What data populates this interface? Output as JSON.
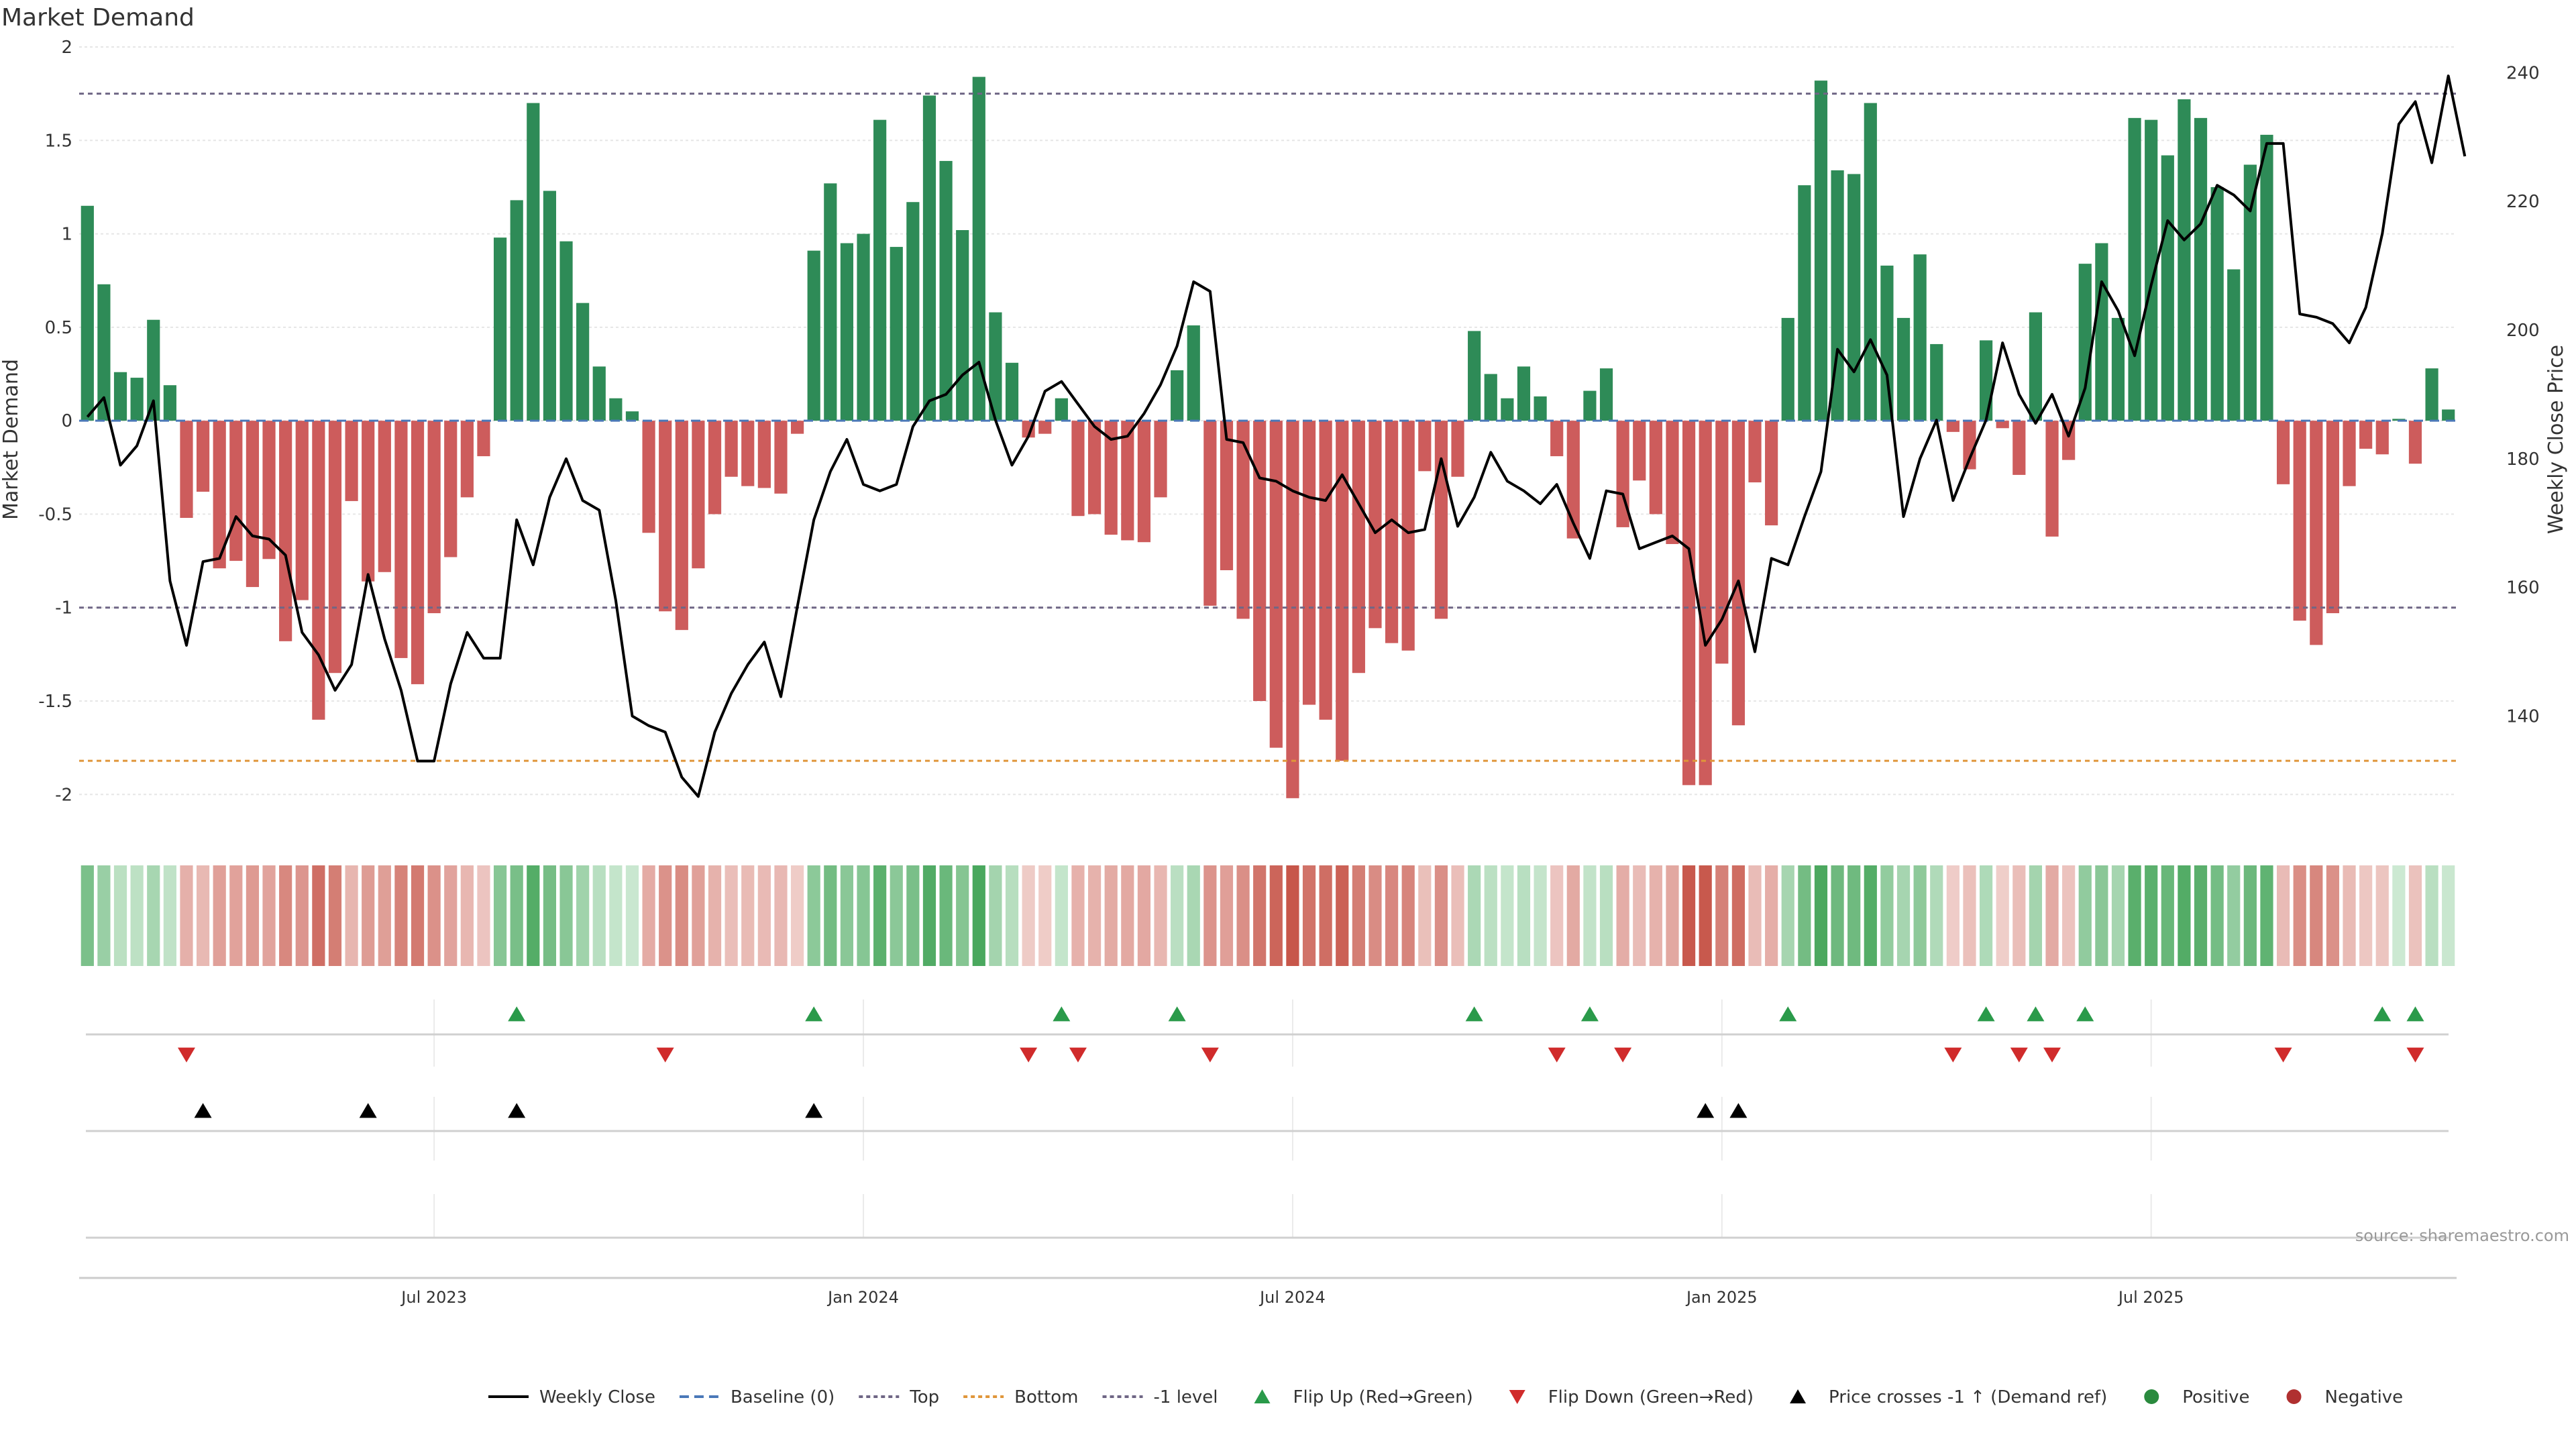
{
  "chart_data": {
    "type": "bar",
    "title": "Market Demand",
    "ylabel_left": "Market Demand",
    "ylabel_right": "Weekly Close Price",
    "xlabel": "",
    "ylim_left": [
      -2.2,
      2.0
    ],
    "ylim_right": [
      122,
      244
    ],
    "left_ticks": [
      "2",
      "1.5",
      "1",
      "0.5",
      "0",
      "-0.5",
      "-1",
      "-1.5",
      "-2"
    ],
    "right_ticks": [
      "240",
      "220",
      "200",
      "180",
      "160",
      "140"
    ],
    "x_tick_labels": [
      {
        "label": "Jul 2023",
        "week": 21
      },
      {
        "label": "Jan 2024",
        "week": 47
      },
      {
        "label": "Jul 2024",
        "week": 73
      },
      {
        "label": "Jan 2025",
        "week": 99
      },
      {
        "label": "Jul 2025",
        "week": 125
      }
    ],
    "levels": {
      "top": 1.75,
      "bottom": -1.82,
      "minus_one": -1
    },
    "series": [
      {
        "name": "Market Demand",
        "values": [
          1.15,
          0.73,
          0.26,
          0.23,
          0.54,
          0.19,
          -0.52,
          -0.38,
          -0.79,
          -0.75,
          -0.89,
          -0.74,
          -1.18,
          -0.96,
          -1.6,
          -1.35,
          -0.43,
          -0.86,
          -0.81,
          -1.27,
          -1.41,
          -1.03,
          -0.73,
          -0.41,
          -0.19,
          0.98,
          1.18,
          1.7,
          1.23,
          0.96,
          0.63,
          0.29,
          0.12,
          0.05,
          -0.6,
          -1.02,
          -1.12,
          -0.79,
          -0.5,
          -0.3,
          -0.35,
          -0.36,
          -0.39,
          -0.07,
          0.91,
          1.27,
          0.95,
          1.0,
          1.61,
          0.93,
          1.17,
          1.74,
          1.39,
          1.02,
          1.84,
          0.58,
          0.31,
          -0.09,
          -0.07,
          0.12,
          -0.51,
          -0.5,
          -0.61,
          -0.64,
          -0.65,
          -0.41,
          0.27,
          0.51,
          -0.99,
          -0.8,
          -1.06,
          -1.5,
          -1.75,
          -2.02,
          -1.52,
          -1.6,
          -1.82,
          -1.35,
          -1.11,
          -1.19,
          -1.23,
          -0.27,
          -1.06,
          -0.3,
          0.48,
          0.25,
          0.12,
          0.29,
          0.13,
          -0.19,
          -0.63,
          0.16,
          0.28,
          -0.57,
          -0.32,
          -0.5,
          -0.66,
          -1.95,
          -1.95,
          -1.3,
          -1.63,
          -0.33,
          -0.56,
          0.55,
          1.26,
          1.82,
          1.34,
          1.32,
          1.7,
          0.83,
          0.55,
          0.89,
          0.41,
          -0.06,
          -0.26,
          0.43,
          -0.04,
          -0.29,
          0.58,
          -0.62,
          -0.21,
          0.84,
          0.95,
          0.55,
          1.62,
          1.61,
          1.42,
          1.72,
          1.62,
          1.25,
          0.81,
          1.37,
          1.53,
          -0.34,
          -1.07,
          -1.2,
          -1.03,
          -0.35,
          -0.15,
          -0.18,
          0.01,
          -0.23,
          0.28,
          0.06
        ]
      },
      {
        "name": "Weekly Close",
        "values": [
          186.5,
          189.5,
          179,
          182,
          189,
          161,
          151,
          164,
          164.5,
          171,
          168,
          167.5,
          165,
          153,
          149.5,
          144,
          148,
          162,
          152,
          144,
          133,
          133,
          145,
          153,
          149,
          149,
          170.5,
          163.5,
          174,
          180,
          173.5,
          172,
          158,
          140,
          138.5,
          137.5,
          130.5,
          127.5,
          137.5,
          143.5,
          148,
          151.5,
          143,
          157,
          170.5,
          178,
          183,
          176,
          175,
          176,
          185,
          189,
          190,
          193,
          195,
          186,
          179,
          183.5,
          190.5,
          192,
          188.5,
          185,
          183,
          183.5,
          187,
          191.5,
          197.5,
          207.5,
          206,
          183,
          182.5,
          177,
          176.5,
          175,
          174,
          173.5,
          177.5,
          173,
          168.5,
          170.5,
          168.5,
          169,
          180,
          169.5,
          174,
          181,
          176.5,
          175,
          173,
          176,
          170,
          164.5,
          175,
          174.5,
          166,
          167,
          168,
          166,
          151,
          155,
          161,
          150,
          164.5,
          163.5,
          171,
          178,
          197,
          193.5,
          198.5,
          193,
          171,
          180,
          186,
          173.5,
          180,
          186,
          198,
          190,
          185.5,
          190,
          183.5,
          191,
          207.5,
          203,
          196,
          207,
          217,
          214,
          216.5,
          222.5,
          221,
          218.5,
          229,
          229,
          202.5,
          202,
          201,
          198,
          203.5,
          215,
          232,
          235.5,
          226,
          239.5,
          227
        ]
      }
    ],
    "heat_strip": {
      "name": "demand intensity"
    },
    "flip_up_weeks": [
      26,
      44,
      59,
      66,
      84,
      91,
      103,
      115,
      118,
      121,
      139,
      141
    ],
    "flip_down_weeks": [
      6,
      35,
      57,
      60,
      68,
      89,
      93,
      113,
      117,
      119,
      133,
      141
    ],
    "price_cross_weeks": [
      7,
      17,
      26,
      44,
      98,
      100
    ],
    "source": "source: sharemaestro.com",
    "legend": [
      {
        "label": "Weekly Close",
        "kind": "line",
        "color": "#000000"
      },
      {
        "label": "Baseline (0)",
        "kind": "dash",
        "color": "#4a78b8"
      },
      {
        "label": "Top",
        "kind": "dot",
        "color": "#6f6685"
      },
      {
        "label": "Bottom",
        "kind": "dot",
        "color": "#e0963a"
      },
      {
        "label": "-1 level",
        "kind": "dot",
        "color": "#6f6685"
      },
      {
        "label": "Flip Up (Red→Green)",
        "kind": "tri-up",
        "color": "#2a9a4a"
      },
      {
        "label": "Flip Down (Green→Red)",
        "kind": "tri-down",
        "color": "#d02b2b"
      },
      {
        "label": "Price crosses -1 ↑ (Demand ref)",
        "kind": "tri-up",
        "color": "#000000"
      },
      {
        "label": "Positive",
        "kind": "dot-circle",
        "color": "#2a8a3e"
      },
      {
        "label": "Negative",
        "kind": "dot-circle",
        "color": "#b03030"
      }
    ],
    "colors": {
      "positive": "#2e8b57",
      "negative": "#cd5c5c",
      "line": "#000000"
    }
  }
}
